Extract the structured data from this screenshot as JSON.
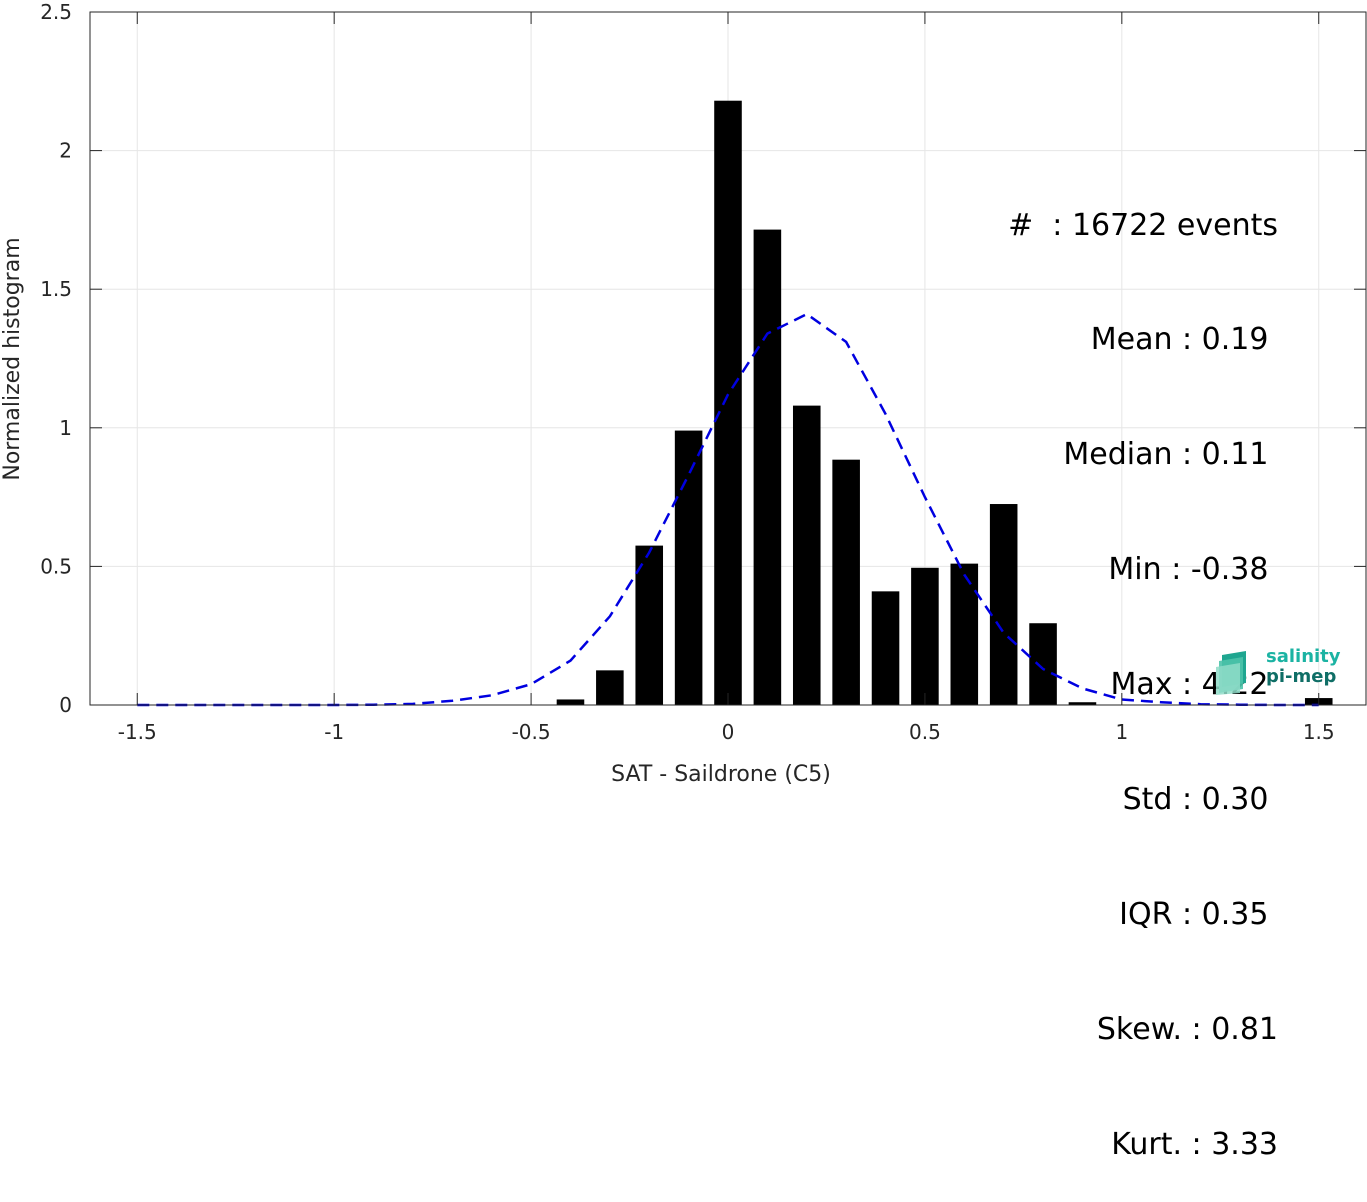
{
  "chart_data": {
    "type": "bar",
    "title": "",
    "xlabel": "SAT - Saildrone (C5)",
    "ylabel": "Normalized histogram",
    "xlim": [
      -1.62,
      1.62
    ],
    "ylim": [
      0,
      2.5
    ],
    "xticks": [
      -1.5,
      -1,
      -0.5,
      0,
      0.5,
      1,
      1.5
    ],
    "xtick_labels": [
      "-1.5",
      "-1",
      "-0.5",
      "0",
      "0.5",
      "1",
      "1.5"
    ],
    "yticks": [
      0,
      0.5,
      1,
      1.5,
      2,
      2.5
    ],
    "ytick_labels": [
      "0",
      "0.5",
      "1",
      "1.5",
      "2",
      "2.5"
    ],
    "grid": true,
    "bar_width": 0.07,
    "bars": {
      "x": [
        -0.4,
        -0.3,
        -0.2,
        -0.1,
        0.0,
        0.1,
        0.2,
        0.3,
        0.4,
        0.5,
        0.6,
        0.7,
        0.8,
        0.9,
        1.5
      ],
      "values": [
        0.02,
        0.125,
        0.575,
        0.99,
        2.18,
        1.715,
        1.08,
        0.885,
        0.41,
        0.495,
        0.51,
        0.725,
        0.295,
        0.01,
        0.025
      ]
    },
    "fit_curve": {
      "x": [
        -1.5,
        -1.4,
        -1.3,
        -1.2,
        -1.1,
        -1.0,
        -0.9,
        -0.8,
        -0.7,
        -0.6,
        -0.5,
        -0.4,
        -0.3,
        -0.2,
        -0.1,
        0.0,
        0.1,
        0.2,
        0.3,
        0.4,
        0.5,
        0.6,
        0.7,
        0.8,
        0.9,
        1.0,
        1.1,
        1.2,
        1.3,
        1.4,
        1.5
      ],
      "y": [
        0,
        0,
        0,
        0,
        0,
        0,
        0.001,
        0.004,
        0.015,
        0.035,
        0.075,
        0.16,
        0.32,
        0.55,
        0.83,
        1.12,
        1.34,
        1.41,
        1.31,
        1.05,
        0.75,
        0.47,
        0.26,
        0.13,
        0.06,
        0.02,
        0.01,
        0.003,
        0.001,
        0,
        0
      ],
      "style": "dashed",
      "color": "#0000e0"
    },
    "bar_color": "#000000",
    "stats_lines": [
      "#  : 16722 events",
      "Mean : 0.19 ",
      "Median : 0.11 ",
      "Min : -0.38 ",
      "Max : 4.22 ",
      "Std : 0.30 ",
      "IQR : 0.35 ",
      "Skew. : 0.81",
      "Kurt. : 3.33"
    ]
  },
  "logo": {
    "line1": "salinity",
    "line2": "pi-mep"
  }
}
